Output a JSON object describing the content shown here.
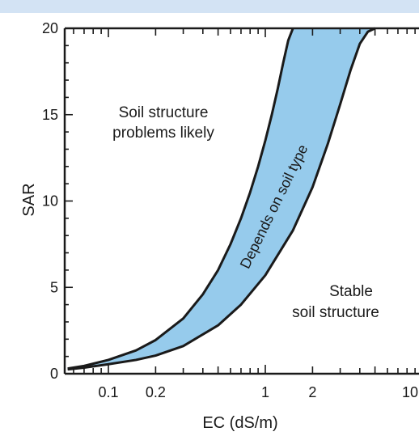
{
  "colors": {
    "band_fill": "#96cbec",
    "top_band": "#d3e3f4",
    "axis": "#1a1a1a",
    "text": "#1a1a1a"
  },
  "chart_data": {
    "type": "area",
    "title": "",
    "xlabel": "EC (dS/m)",
    "ylabel": "SAR",
    "x_scale": "log",
    "xlim": [
      0.055,
      10
    ],
    "ylim": [
      0,
      20
    ],
    "grid": false,
    "x_major_ticks": [
      0.1,
      0.2,
      1,
      2,
      10
    ],
    "x_tick_labels": [
      "0.1",
      "0.2",
      "1",
      "2",
      "10"
    ],
    "y_ticks": [
      0,
      5,
      10,
      15,
      20
    ],
    "y_tick_labels": [
      "0",
      "5",
      "10",
      "15",
      "20"
    ],
    "series": [
      {
        "role": "upper-boundary",
        "x": [
          0.055,
          0.07,
          0.1,
          0.15,
          0.2,
          0.3,
          0.4,
          0.5,
          0.6,
          0.7,
          0.8,
          0.9,
          1.0,
          1.1,
          1.2,
          1.3,
          1.4,
          1.5
        ],
        "y": [
          0.3,
          0.45,
          0.8,
          1.35,
          1.95,
          3.2,
          4.6,
          6.0,
          7.5,
          9.0,
          10.5,
          12.0,
          13.5,
          15.0,
          16.5,
          18.0,
          19.3,
          20.0
        ]
      },
      {
        "role": "lower-boundary",
        "x": [
          0.055,
          0.07,
          0.1,
          0.15,
          0.2,
          0.3,
          0.5,
          0.7,
          1.0,
          1.5,
          2.0,
          2.5,
          3.0,
          3.5,
          4.0,
          4.5,
          5.0
        ],
        "y": [
          0.25,
          0.35,
          0.55,
          0.8,
          1.05,
          1.6,
          2.8,
          4.0,
          5.7,
          8.3,
          10.8,
          13.3,
          15.6,
          17.6,
          19.1,
          19.8,
          20.0
        ]
      }
    ],
    "annotations": [
      {
        "id": "problems",
        "lines": [
          "Soil structure",
          "problems likely"
        ]
      },
      {
        "id": "band",
        "lines": [
          "Depends on soil type"
        ]
      },
      {
        "id": "stable",
        "lines": [
          "Stable",
          "soil structure"
        ]
      }
    ]
  }
}
